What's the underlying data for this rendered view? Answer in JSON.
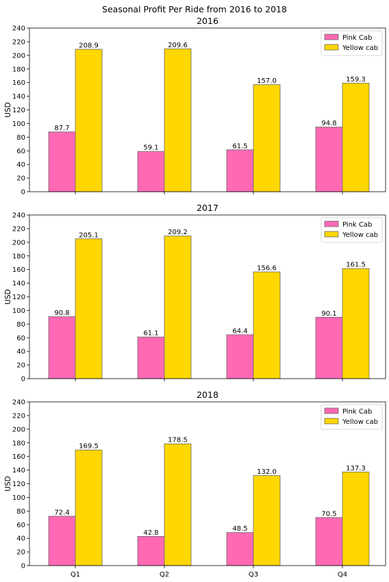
{
  "figure": {
    "suptitle": "Seasonal Profit Per Ride from 2016 to 2018"
  },
  "colors": {
    "pink": "#ff69b4",
    "yellow": "#ffd700",
    "edge": "#666666"
  },
  "chart_data": [
    {
      "type": "bar",
      "title": "2016",
      "ylabel": "USD",
      "ylim": [
        0,
        240
      ],
      "yticks": [
        0,
        20,
        40,
        60,
        80,
        100,
        120,
        140,
        160,
        180,
        200,
        220,
        240
      ],
      "categories": [
        "Q1",
        "Q2",
        "Q3",
        "Q4"
      ],
      "show_xticklabels": false,
      "legend": "upper right",
      "series": [
        {
          "name": "Pink Cab",
          "values": [
            87.7,
            59.1,
            61.5,
            94.8
          ],
          "labels": [
            "87.7",
            "59.1",
            "61.5",
            "94.8"
          ]
        },
        {
          "name": "Yellow cab",
          "values": [
            208.9,
            209.6,
            157.0,
            159.3
          ],
          "labels": [
            "208.9",
            "209.6",
            "157.0",
            "159.3"
          ]
        }
      ]
    },
    {
      "type": "bar",
      "title": "2017",
      "ylabel": "USD",
      "ylim": [
        0,
        240
      ],
      "yticks": [
        0,
        20,
        40,
        60,
        80,
        100,
        120,
        140,
        160,
        180,
        200,
        220,
        240
      ],
      "categories": [
        "Q1",
        "Q2",
        "Q3",
        "Q4"
      ],
      "show_xticklabels": false,
      "legend": "upper right",
      "series": [
        {
          "name": "Pink Cab",
          "values": [
            90.8,
            61.1,
            64.4,
            90.1
          ],
          "labels": [
            "90.8",
            "61.1",
            "64.4",
            "90.1"
          ]
        },
        {
          "name": "Yellow cab",
          "values": [
            205.1,
            209.2,
            156.6,
            161.5
          ],
          "labels": [
            "205.1",
            "209.2",
            "156.6",
            "161.5"
          ]
        }
      ]
    },
    {
      "type": "bar",
      "title": "2018",
      "ylabel": "USD",
      "ylim": [
        0,
        240
      ],
      "yticks": [
        0,
        20,
        40,
        60,
        80,
        100,
        120,
        140,
        160,
        180,
        200,
        220,
        240
      ],
      "categories": [
        "Q1",
        "Q2",
        "Q3",
        "Q4"
      ],
      "show_xticklabels": true,
      "legend": "upper right",
      "series": [
        {
          "name": "Pink Cab",
          "values": [
            72.4,
            42.8,
            48.5,
            70.5
          ],
          "labels": [
            "72.4",
            "42.8",
            "48.5",
            "70.5"
          ]
        },
        {
          "name": "Yellow cab",
          "values": [
            169.5,
            178.5,
            132.0,
            137.3
          ],
          "labels": [
            "169.5",
            "178.5",
            "132.0",
            "137.3"
          ]
        }
      ]
    }
  ]
}
